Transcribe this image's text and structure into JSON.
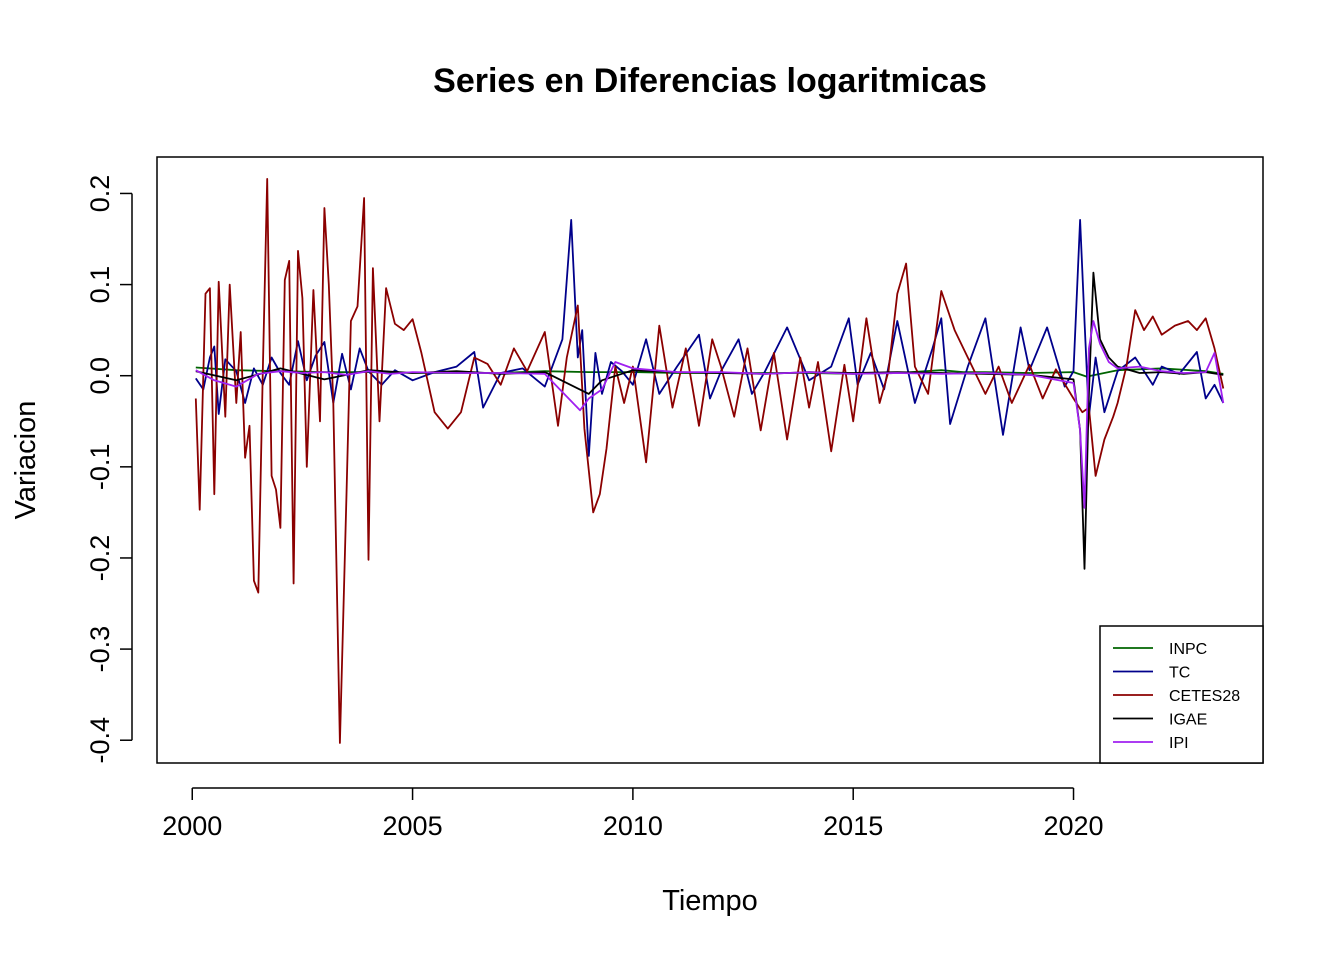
{
  "chart_data": {
    "type": "line",
    "title": "Series en Diferencias logaritmicas",
    "xlabel": "Tiempo",
    "ylabel": "Variacion",
    "xlim": [
      1999.2,
      2024.3
    ],
    "ylim": [
      -0.425,
      0.24
    ],
    "x_ticks": [
      2000,
      2005,
      2010,
      2015,
      2020
    ],
    "y_ticks": [
      -0.4,
      -0.3,
      -0.2,
      -0.1,
      0.0,
      0.1,
      0.2
    ],
    "y_tick_labels": [
      "-0.4",
      "-0.3",
      "-0.2",
      "-0.1",
      "0.0",
      "0.1",
      "0.2"
    ],
    "legend_position": "bottom-right",
    "grid": false,
    "series": [
      {
        "name": "INPC",
        "color": "#006400",
        "x": [
          2000.08,
          2001.0,
          2002.0,
          2003.0,
          2004.0,
          2005.0,
          2006.0,
          2007.0,
          2008.0,
          2009.0,
          2010.0,
          2011.0,
          2012.0,
          2013.0,
          2014.0,
          2015.0,
          2016.0,
          2017.0,
          2017.5,
          2018.0,
          2019.0,
          2020.0,
          2020.3,
          2021.0,
          2022.0,
          2023.0,
          2023.4
        ],
        "y": [
          0.009,
          0.006,
          0.005,
          0.004,
          0.004,
          0.003,
          0.003,
          0.003,
          0.005,
          0.004,
          0.004,
          0.003,
          0.003,
          0.003,
          0.003,
          0.002,
          0.003,
          0.006,
          0.004,
          0.004,
          0.003,
          0.004,
          -0.001,
          0.006,
          0.008,
          0.005,
          0.002
        ]
      },
      {
        "name": "TC",
        "color": "#00008B",
        "x": [
          2000.08,
          2000.25,
          2000.4,
          2000.5,
          2000.6,
          2000.75,
          2001.0,
          2001.2,
          2001.4,
          2001.6,
          2001.8,
          2002.0,
          2002.2,
          2002.4,
          2002.6,
          2002.8,
          2003.0,
          2003.2,
          2003.4,
          2003.6,
          2003.8,
          2004.0,
          2004.3,
          2004.6,
          2005.0,
          2005.5,
          2006.0,
          2006.4,
          2006.6,
          2007.0,
          2007.5,
          2008.0,
          2008.4,
          2008.6,
          2008.75,
          2008.85,
          2009.0,
          2009.15,
          2009.3,
          2009.5,
          2009.75,
          2010.0,
          2010.3,
          2010.6,
          2011.0,
          2011.5,
          2011.75,
          2012.0,
          2012.4,
          2012.7,
          2013.0,
          2013.5,
          2014.0,
          2014.5,
          2014.9,
          2015.1,
          2015.4,
          2015.7,
          2016.0,
          2016.4,
          2016.8,
          2017.0,
          2017.2,
          2017.6,
          2018.0,
          2018.4,
          2018.8,
          2019.0,
          2019.4,
          2019.8,
          2020.0,
          2020.15,
          2020.25,
          2020.35,
          2020.5,
          2020.7,
          2021.0,
          2021.4,
          2021.8,
          2022.0,
          2022.4,
          2022.8,
          2023.0,
          2023.2,
          2023.4
        ],
        "y": [
          -0.003,
          -0.015,
          0.02,
          0.032,
          -0.042,
          0.018,
          0.005,
          -0.03,
          0.008,
          -0.01,
          0.02,
          0.003,
          -0.01,
          0.038,
          -0.005,
          0.022,
          0.037,
          -0.03,
          0.024,
          -0.015,
          0.03,
          0.005,
          -0.01,
          0.006,
          -0.005,
          0.004,
          0.01,
          0.026,
          -0.035,
          0.003,
          0.008,
          -0.012,
          0.04,
          0.171,
          0.02,
          0.05,
          -0.088,
          0.025,
          -0.02,
          0.015,
          0.005,
          -0.01,
          0.04,
          -0.02,
          0.01,
          0.045,
          -0.025,
          0.005,
          0.04,
          -0.02,
          0.005,
          0.053,
          -0.005,
          0.01,
          0.063,
          -0.01,
          0.025,
          -0.015,
          0.06,
          -0.03,
          0.03,
          0.063,
          -0.053,
          0.01,
          0.063,
          -0.065,
          0.053,
          0.006,
          0.053,
          -0.012,
          0.005,
          0.171,
          0.06,
          -0.045,
          0.02,
          -0.04,
          0.005,
          0.02,
          -0.01,
          0.01,
          0.002,
          0.026,
          -0.025,
          -0.01,
          -0.03
        ]
      },
      {
        "name": "CETES28",
        "color": "#8B0000",
        "x": [
          2000.08,
          2000.17,
          2000.3,
          2000.4,
          2000.5,
          2000.6,
          2000.75,
          2000.85,
          2001.0,
          2001.1,
          2001.2,
          2001.3,
          2001.4,
          2001.5,
          2001.6,
          2001.7,
          2001.8,
          2001.9,
          2002.0,
          2002.1,
          2002.2,
          2002.3,
          2002.4,
          2002.5,
          2002.6,
          2002.75,
          2002.9,
          2003.0,
          2003.1,
          2003.2,
          2003.35,
          2003.5,
          2003.6,
          2003.75,
          2003.9,
          2004.0,
          2004.1,
          2004.25,
          2004.4,
          2004.6,
          2004.8,
          2005.0,
          2005.2,
          2005.5,
          2005.8,
          2006.1,
          2006.4,
          2006.7,
          2007.0,
          2007.3,
          2007.6,
          2008.0,
          2008.3,
          2008.5,
          2008.75,
          2008.9,
          2009.1,
          2009.25,
          2009.4,
          2009.6,
          2009.8,
          2010.0,
          2010.3,
          2010.6,
          2010.9,
          2011.2,
          2011.5,
          2011.8,
          2012.0,
          2012.3,
          2012.6,
          2012.9,
          2013.2,
          2013.5,
          2013.8,
          2014.0,
          2014.2,
          2014.5,
          2014.8,
          2015.0,
          2015.3,
          2015.6,
          2015.8,
          2016.0,
          2016.2,
          2016.4,
          2016.7,
          2017.0,
          2017.3,
          2017.6,
          2018.0,
          2018.3,
          2018.6,
          2019.0,
          2019.3,
          2019.6,
          2020.0,
          2020.2,
          2020.35,
          2020.5,
          2020.7,
          2020.9,
          2021.0,
          2021.2,
          2021.4,
          2021.6,
          2021.8,
          2022.0,
          2022.3,
          2022.6,
          2022.8,
          2023.0,
          2023.2,
          2023.4
        ],
        "y": [
          -0.025,
          -0.147,
          0.09,
          0.096,
          -0.13,
          0.103,
          -0.045,
          0.1,
          -0.03,
          0.048,
          -0.09,
          -0.055,
          -0.225,
          -0.238,
          0.005,
          0.216,
          -0.11,
          -0.125,
          -0.167,
          0.105,
          0.126,
          -0.228,
          0.137,
          0.085,
          -0.1,
          0.094,
          -0.05,
          0.184,
          0.1,
          -0.03,
          -0.403,
          -0.13,
          0.06,
          0.076,
          0.195,
          -0.202,
          0.118,
          -0.05,
          0.096,
          0.057,
          0.05,
          0.062,
          0.025,
          -0.04,
          -0.058,
          -0.04,
          0.02,
          0.013,
          -0.01,
          0.03,
          0.005,
          0.048,
          -0.055,
          0.02,
          0.077,
          -0.058,
          -0.15,
          -0.13,
          -0.08,
          0.01,
          -0.03,
          0.01,
          -0.095,
          0.055,
          -0.035,
          0.03,
          -0.055,
          0.04,
          0.01,
          -0.045,
          0.03,
          -0.06,
          0.025,
          -0.07,
          0.02,
          -0.035,
          0.015,
          -0.083,
          0.012,
          -0.05,
          0.063,
          -0.03,
          0.005,
          0.09,
          0.123,
          0.01,
          -0.02,
          0.093,
          0.05,
          0.02,
          -0.02,
          0.01,
          -0.03,
          0.012,
          -0.025,
          0.007,
          -0.025,
          -0.04,
          -0.035,
          -0.11,
          -0.07,
          -0.045,
          -0.03,
          0.01,
          0.072,
          0.05,
          0.065,
          0.045,
          0.055,
          0.06,
          0.05,
          0.063,
          0.03,
          -0.014
        ]
      },
      {
        "name": "IGAE",
        "color": "#000000",
        "x": [
          2000.08,
          2001.0,
          2002.0,
          2003.0,
          2004.0,
          2005.0,
          2006.0,
          2007.0,
          2008.0,
          2009.0,
          2009.3,
          2010.0,
          2011.0,
          2012.0,
          2013.0,
          2014.0,
          2015.0,
          2016.0,
          2017.0,
          2018.0,
          2019.0,
          2020.0,
          2020.15,
          2020.25,
          2020.35,
          2020.45,
          2020.6,
          2020.8,
          2021.0,
          2021.5,
          2022.0,
          2022.5,
          2023.0,
          2023.4
        ],
        "y": [
          0.005,
          -0.005,
          0.008,
          -0.004,
          0.006,
          0.003,
          0.005,
          0.002,
          0.004,
          -0.02,
          -0.005,
          0.006,
          0.004,
          0.003,
          0.002,
          0.004,
          0.003,
          0.004,
          0.003,
          0.002,
          0.001,
          -0.004,
          -0.06,
          -0.212,
          -0.02,
          0.113,
          0.04,
          0.02,
          0.01,
          0.003,
          0.004,
          0.002,
          0.004,
          0.001
        ]
      },
      {
        "name": "IPI",
        "color": "#A020F0",
        "x": [
          2000.08,
          2000.5,
          2001.0,
          2001.5,
          2002.0,
          2002.5,
          2003.0,
          2003.5,
          2004.0,
          2004.5,
          2005.0,
          2006.0,
          2007.0,
          2008.0,
          2008.8,
          2009.0,
          2009.3,
          2009.6,
          2010.0,
          2011.0,
          2012.0,
          2013.0,
          2014.0,
          2015.0,
          2016.0,
          2017.0,
          2018.0,
          2019.0,
          2020.0,
          2020.15,
          2020.25,
          2020.35,
          2020.45,
          2020.6,
          2020.8,
          2021.0,
          2021.5,
          2022.0,
          2022.5,
          2023.0,
          2023.2,
          2023.4
        ],
        "y": [
          0.006,
          -0.005,
          -0.012,
          0.002,
          0.005,
          0.003,
          0.004,
          0.001,
          0.005,
          0.002,
          0.004,
          0.003,
          0.003,
          0.002,
          -0.038,
          -0.025,
          -0.015,
          0.015,
          0.008,
          0.004,
          0.004,
          0.002,
          0.004,
          0.002,
          0.003,
          0.002,
          0.003,
          0.001,
          -0.008,
          -0.06,
          -0.145,
          0.03,
          0.06,
          0.035,
          0.015,
          0.008,
          0.01,
          0.005,
          0.003,
          0.004,
          0.025,
          -0.03
        ]
      }
    ]
  }
}
